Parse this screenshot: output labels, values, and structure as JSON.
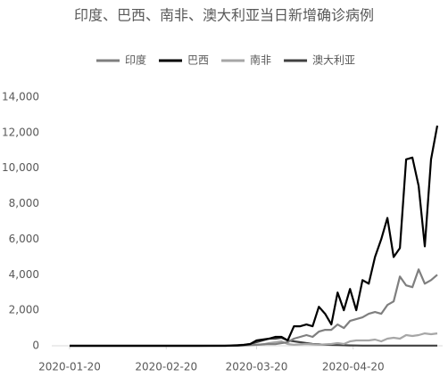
{
  "chart_data": {
    "type": "line",
    "title": "印度、巴西、南非、澳大利亚当日新增确诊病例",
    "x": [
      "2020-01-20",
      "2020-02-01",
      "2020-02-15",
      "2020-03-01",
      "2020-03-10",
      "2020-03-14",
      "2020-03-16",
      "2020-03-18",
      "2020-03-20",
      "2020-03-22",
      "2020-03-24",
      "2020-03-26",
      "2020-03-28",
      "2020-03-30",
      "2020-04-01",
      "2020-04-03",
      "2020-04-05",
      "2020-04-07",
      "2020-04-09",
      "2020-04-11",
      "2020-04-13",
      "2020-04-15",
      "2020-04-17",
      "2020-04-19",
      "2020-04-21",
      "2020-04-23",
      "2020-04-25",
      "2020-04-27",
      "2020-04-29",
      "2020-05-01",
      "2020-05-03",
      "2020-05-05",
      "2020-05-07",
      "2020-05-09",
      "2020-05-11",
      "2020-05-13",
      "2020-05-15",
      "2020-05-17"
    ],
    "series": [
      {
        "name": "印度",
        "color": "#7f7f7f",
        "values": [
          0,
          0,
          0,
          0,
          5,
          20,
          30,
          40,
          60,
          80,
          100,
          90,
          150,
          200,
          400,
          500,
          600,
          500,
          800,
          900,
          900,
          1200,
          1000,
          1400,
          1500,
          1600,
          1800,
          1900,
          1800,
          2300,
          2500,
          3900,
          3400,
          3300,
          4300,
          3500,
          3700,
          4000
        ]
      },
      {
        "name": "巴西",
        "color": "#000000",
        "values": [
          0,
          0,
          0,
          0,
          0,
          20,
          50,
          100,
          300,
          350,
          400,
          500,
          500,
          300,
          1100,
          1100,
          1200,
          1100,
          2200,
          1800,
          1200,
          3000,
          2000,
          3200,
          2000,
          3700,
          3500,
          5000,
          6000,
          7200,
          5000,
          5500,
          10500,
          10600,
          9000,
          5600,
          10500,
          12400
        ]
      },
      {
        "name": "南非",
        "color": "#a6a6a6",
        "values": [
          0,
          0,
          0,
          0,
          0,
          10,
          20,
          30,
          50,
          80,
          150,
          200,
          250,
          100,
          60,
          80,
          100,
          80,
          60,
          80,
          100,
          150,
          100,
          250,
          300,
          300,
          300,
          350,
          250,
          400,
          450,
          400,
          600,
          550,
          600,
          700,
          650,
          700
        ]
      },
      {
        "name": "澳大利亚",
        "color": "#404040",
        "values": [
          0,
          0,
          0,
          0,
          10,
          40,
          60,
          100,
          200,
          300,
          400,
          400,
          450,
          300,
          250,
          200,
          150,
          100,
          80,
          60,
          50,
          40,
          30,
          20,
          15,
          10,
          10,
          10,
          10,
          10,
          10,
          10,
          10,
          10,
          10,
          10,
          10,
          10
        ]
      }
    ],
    "xlim": [
      "2020-01-20",
      "2020-05-17"
    ],
    "xticks": [
      "2020-01-20",
      "2020-02-20",
      "2020-03-20",
      "2020-04-20"
    ],
    "ylim": [
      0,
      14000
    ],
    "yticks": [
      0,
      {
        "value": 2000,
        "label": "2,000"
      },
      {
        "value": 4000,
        "label": "4,000"
      },
      {
        "value": 6000,
        "label": "6,000"
      },
      {
        "value": 8000,
        "label": "8,000"
      },
      {
        "value": 10000,
        "label": "10,000"
      },
      {
        "value": 12000,
        "label": "12,000"
      },
      {
        "value": 14000,
        "label": "14,000"
      }
    ],
    "legend": "top"
  }
}
